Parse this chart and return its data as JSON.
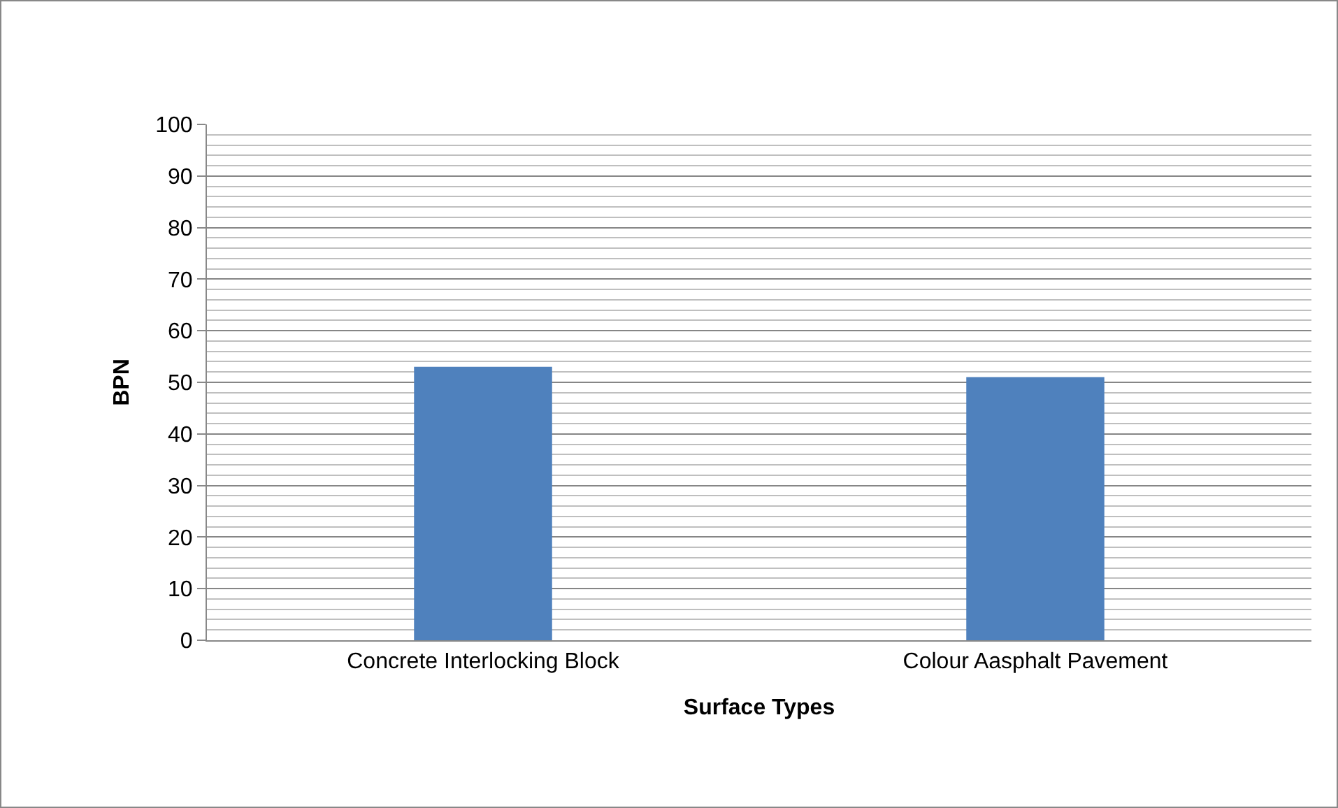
{
  "chart_data": {
    "type": "bar",
    "xlabel": "Surface Types",
    "ylabel": "BPN",
    "categories": [
      "Concrete Interlocking Block",
      "Colour Aasphalt Pavement"
    ],
    "values": [
      53,
      51
    ],
    "color": "#4f81bd",
    "ylim": [
      0,
      100
    ],
    "yticks": [
      0,
      {
        "value": 2,
        "label": null
      },
      {
        "value": 4,
        "label": null
      },
      {
        "value": 6,
        "label": null
      },
      {
        "value": 8,
        "label": null
      },
      10,
      {
        "value": 12,
        "label": null
      },
      {
        "value": 14,
        "label": null
      },
      {
        "value": 16,
        "label": null
      },
      {
        "value": 18,
        "label": null
      },
      20,
      {
        "value": 22,
        "label": null
      },
      {
        "value": 24,
        "label": null
      },
      {
        "value": 26,
        "label": null
      },
      {
        "value": 28,
        "label": null
      },
      30,
      {
        "value": 32,
        "label": null
      },
      {
        "value": 34,
        "label": null
      },
      {
        "value": 36,
        "label": null
      },
      {
        "value": 38,
        "label": null
      },
      40,
      {
        "value": 42,
        "label": null
      },
      {
        "value": 44,
        "label": null
      },
      {
        "value": 46,
        "label": null
      },
      {
        "value": 48,
        "label": null
      },
      50,
      {
        "value": 52,
        "label": null
      },
      {
        "value": 54,
        "label": null
      },
      {
        "value": 56,
        "label": null
      },
      {
        "value": 58,
        "label": null
      },
      60,
      {
        "value": 62,
        "label": null
      },
      {
        "value": 64,
        "label": null
      },
      {
        "value": 66,
        "label": null
      },
      {
        "value": 68,
        "label": null
      },
      70,
      {
        "value": 72,
        "label": null
      },
      {
        "value": 74,
        "label": null
      },
      {
        "value": 76,
        "label": null
      },
      {
        "value": 78,
        "label": null
      },
      80,
      {
        "value": 82,
        "label": null
      },
      {
        "value": 84,
        "label": null
      },
      {
        "value": 86,
        "label": null
      },
      {
        "value": 88,
        "label": null
      },
      90,
      {
        "value": 92,
        "label": null
      },
      {
        "value": 94,
        "label": null
      },
      {
        "value": 96,
        "label": null
      },
      {
        "value": 98,
        "label": null
      },
      100
    ],
    "grid": "y"
  }
}
